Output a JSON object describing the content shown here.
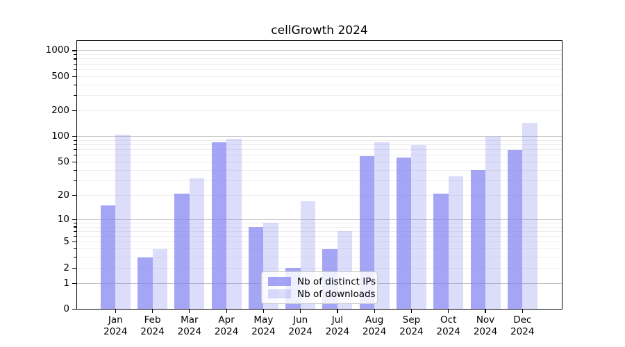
{
  "chart_data": {
    "type": "bar",
    "title": "cellGrowth 2024",
    "categories": [
      "Jan",
      "Feb",
      "Mar",
      "Apr",
      "May",
      "Jun",
      "Jul",
      "Aug",
      "Sep",
      "Oct",
      "Nov",
      "Dec"
    ],
    "category_year": "2024",
    "series": [
      {
        "name": "Nb of distinct IPs",
        "values": [
          15,
          3,
          21,
          85,
          8,
          2,
          4,
          59,
          57,
          21,
          40,
          70
        ],
        "color": "#a6a7f4",
        "color_rgba": "rgba(130,130,242,0.72)"
      },
      {
        "name": "Nb of downloads",
        "values": [
          105,
          4,
          32,
          94,
          9,
          17,
          7,
          85,
          80,
          34,
          100,
          145
        ],
        "color": "#dcddfa",
        "color_rgba": "rgba(130,130,242,0.28)"
      }
    ],
    "yscale": "log10(value+1)",
    "yticks_labeled": [
      0,
      1,
      2,
      5,
      10,
      20,
      50,
      100,
      200,
      500,
      1000
    ],
    "yticks_minor": [
      3,
      4,
      6,
      7,
      8,
      9,
      30,
      40,
      60,
      70,
      80,
      90,
      300,
      400,
      600,
      700,
      800,
      900
    ],
    "grid_major_at": [
      1,
      10,
      100,
      1000
    ],
    "grid_minor_at": [
      2,
      3,
      4,
      5,
      6,
      7,
      8,
      9,
      20,
      30,
      40,
      50,
      60,
      70,
      80,
      90,
      200,
      300,
      400,
      500,
      600,
      700,
      800,
      900
    ],
    "ylim": [
      0,
      1300
    ],
    "xlabel": "",
    "ylabel": "",
    "grid": true,
    "legend_position": "lower center",
    "colors": {
      "grid_major": "#c4c4c4",
      "grid_minor": "#ededed",
      "spine": "#000000",
      "text": "#000000",
      "background": "#ffffff",
      "legend_border": "#cccccc"
    }
  }
}
